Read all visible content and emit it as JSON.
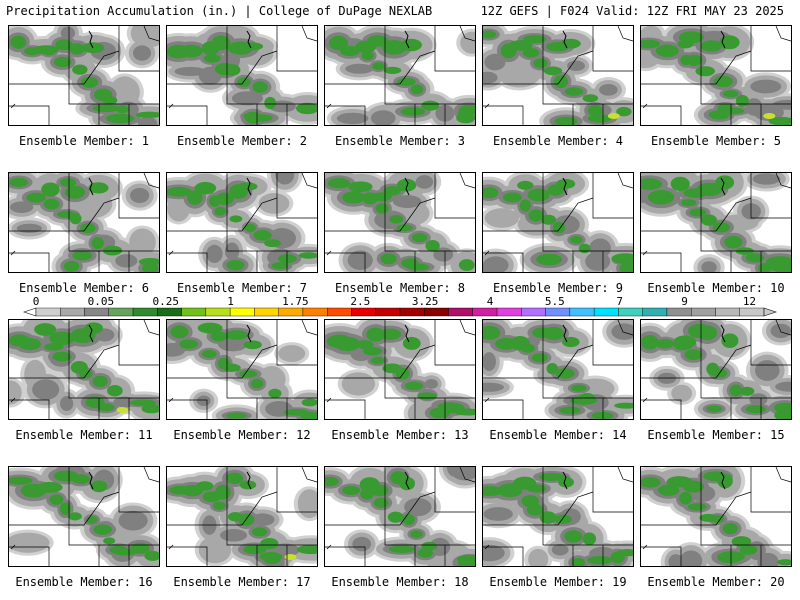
{
  "header": {
    "left": "Precipitation Accumulation (in.) | College of DuPage NEXLAB",
    "right": "12Z GEFS | F024 Valid: 12Z FRI MAY 23 2025"
  },
  "panel_label_prefix": "Ensemble Member: ",
  "members": [
    1,
    2,
    3,
    4,
    5,
    6,
    7,
    8,
    9,
    10,
    11,
    12,
    13,
    14,
    15,
    16,
    17,
    18,
    19,
    20
  ],
  "colorbar": {
    "tick_labels": [
      "0",
      "0.05",
      "0.25",
      "1",
      "1.75",
      "2.5",
      "3.25",
      "4",
      "5.5",
      "7",
      "9",
      "12"
    ],
    "bins": [
      "#cfcfcf",
      "#a9a9a9",
      "#878787",
      "#66a35c",
      "#2e8b2e",
      "#1a6e1a",
      "#72c01a",
      "#b8e01a",
      "#ffff00",
      "#ffd400",
      "#ffaa00",
      "#ff7f00",
      "#ff4c00",
      "#e60000",
      "#c40000",
      "#a30000",
      "#8b0000",
      "#b0106a",
      "#d020a0",
      "#e040e0",
      "#b070ff",
      "#7090ff",
      "#40c0ff",
      "#00e0ff",
      "#40d0c0",
      "#30b0b0",
      "#909090",
      "#a0a0a0",
      "#b8b8b8",
      "#c8c8c8"
    ]
  },
  "colors": {
    "light_gray": "#d0d0d0",
    "mid_gray": "#a8a8a8",
    "dark_gray": "#808080",
    "green": "#3a9a32",
    "dark_green": "#1f7a1f",
    "yellow_green": "#c8e030"
  }
}
